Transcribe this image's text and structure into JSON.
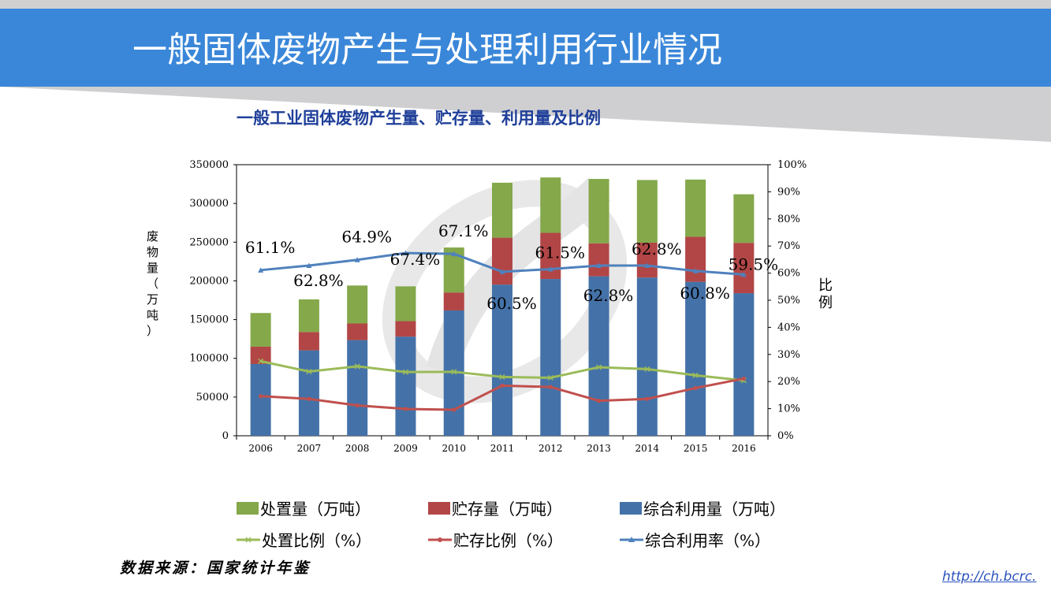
{
  "page": {
    "title": "一般固体废物产生与处理利用行业情况",
    "source_note": "数据来源：国家统计年鉴",
    "footer_link": "http://ch.bcrc.",
    "colors": {
      "header": "#3a87d9",
      "title_text": "#ffffff",
      "chart_title": "#1f3f99",
      "link": "#2a52be"
    }
  },
  "chart_data": {
    "type": "bar",
    "stacked": true,
    "title": "一般工业固体废物产生量、贮存量、利用量及比例",
    "categories": [
      "2006",
      "2007",
      "2008",
      "2009",
      "2010",
      "2011",
      "2012",
      "2013",
      "2014",
      "2015",
      "2016"
    ],
    "ylabel": "废物量（万吨）",
    "y2label": "比例",
    "ylim": [
      0,
      350000
    ],
    "y_ticks": [
      "0",
      "50000",
      "100000",
      "150000",
      "200000",
      "250000",
      "300000",
      "350000"
    ],
    "y2lim": [
      0,
      100
    ],
    "y2_ticks": [
      "0%",
      "10%",
      "20%",
      "30%",
      "40%",
      "50%",
      "60%",
      "70%",
      "80%",
      "90%",
      "100%"
    ],
    "bar_series": [
      {
        "name": "综合利用量（万吨）",
        "color": "#4472a8",
        "values": [
          92600,
          110300,
          123500,
          128000,
          161800,
          195200,
          202400,
          205900,
          204300,
          198800,
          184100
        ]
      },
      {
        "name": "贮存量（万吨）",
        "color": "#b24646",
        "values": [
          22400,
          23700,
          21500,
          20000,
          23200,
          60600,
          59600,
          42600,
          45000,
          58200,
          65000
        ]
      },
      {
        "name": "处置量（万吨）",
        "color": "#84a84a",
        "values": [
          43500,
          42100,
          49000,
          44900,
          58100,
          70900,
          71500,
          83100,
          80900,
          73800,
          62700
        ]
      }
    ],
    "line_series": [
      {
        "name": "处置比例（%）",
        "color": "#9bbb59",
        "marker": "x",
        "values": [
          27.5,
          23.7,
          25.6,
          23.5,
          23.6,
          21.7,
          21.4,
          25.3,
          24.6,
          22.3,
          20.4
        ]
      },
      {
        "name": "贮存比例（%）",
        "color": "#c0504d",
        "marker": "circle",
        "values": [
          14.6,
          13.6,
          11.2,
          9.9,
          9.6,
          18.5,
          18.0,
          12.9,
          13.6,
          17.6,
          21.1
        ]
      },
      {
        "name": "综合利用率（%）",
        "color": "#4f81bd",
        "marker": "triangle",
        "values": [
          61.1,
          62.8,
          64.9,
          67.4,
          67.1,
          60.5,
          61.5,
          62.8,
          62.8,
          60.8,
          59.5
        ]
      }
    ],
    "rate_labels": [
      "61.1%",
      "62.8%",
      "64.9%",
      "67.4%",
      "67.1%",
      "60.5%",
      "61.5%",
      "62.8%",
      "62.8%",
      "60.8%",
      "59.5%"
    ],
    "legend_position": "bottom"
  }
}
